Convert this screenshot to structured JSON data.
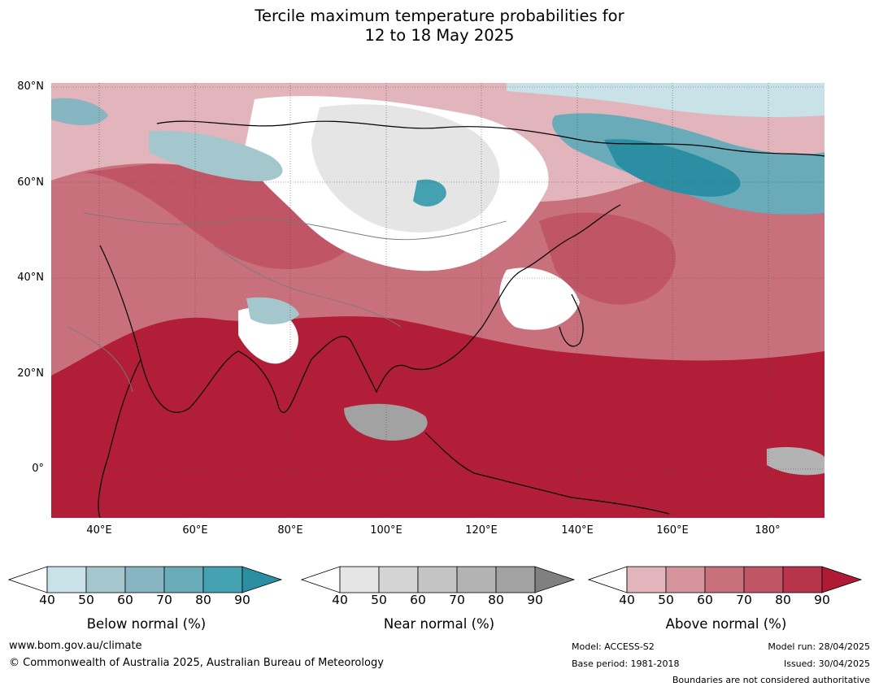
{
  "title": {
    "line1": "Tercile maximum temperature probabilities for",
    "line2": "12 to 18 May 2025"
  },
  "map": {
    "lat_labels": [
      "80°N",
      "60°N",
      "40°N",
      "20°N",
      "0°"
    ],
    "lon_labels": [
      "40°E",
      "60°E",
      "80°E",
      "100°E",
      "120°E",
      "140°E",
      "160°E",
      "180°"
    ],
    "colors": {
      "above_dark": "#b21d38",
      "near_gray": "#c9c9c9",
      "below_teal": "#2d8fa3"
    }
  },
  "colorbars": [
    {
      "label": "Below normal (%)",
      "ticks": [
        "40",
        "50",
        "60",
        "70",
        "80",
        "90"
      ],
      "colors": [
        "#c9e2e8",
        "#a4c6cd",
        "#87b5c1",
        "#69abb9",
        "#43a1b1",
        "#2b8ea2"
      ]
    },
    {
      "label": "Near normal (%)",
      "ticks": [
        "40",
        "50",
        "60",
        "70",
        "80",
        "90"
      ],
      "colors": [
        "#e5e5e5",
        "#d4d4d4",
        "#c4c4c4",
        "#b3b3b3",
        "#a2a2a2",
        "#808080"
      ]
    },
    {
      "label": "Above normal (%)",
      "ticks": [
        "40",
        "50",
        "60",
        "70",
        "80",
        "90"
      ],
      "colors": [
        "#e2b4bb",
        "#d5949c",
        "#c9707d",
        "#c05565",
        "#b8344b",
        "#b01a37"
      ]
    }
  ],
  "footer": {
    "website": "www.bom.gov.au/climate",
    "copyright": "© Commonwealth of Australia 2025, Australian Bureau of Meteorology",
    "model": "Model: ACCESS-S2",
    "base_period": "Base period: 1981-2018",
    "model_run": "Model run: 28/04/2025",
    "issued": "Issued: 30/04/2025",
    "boundaries": "Boundaries are not considered authoritative"
  }
}
